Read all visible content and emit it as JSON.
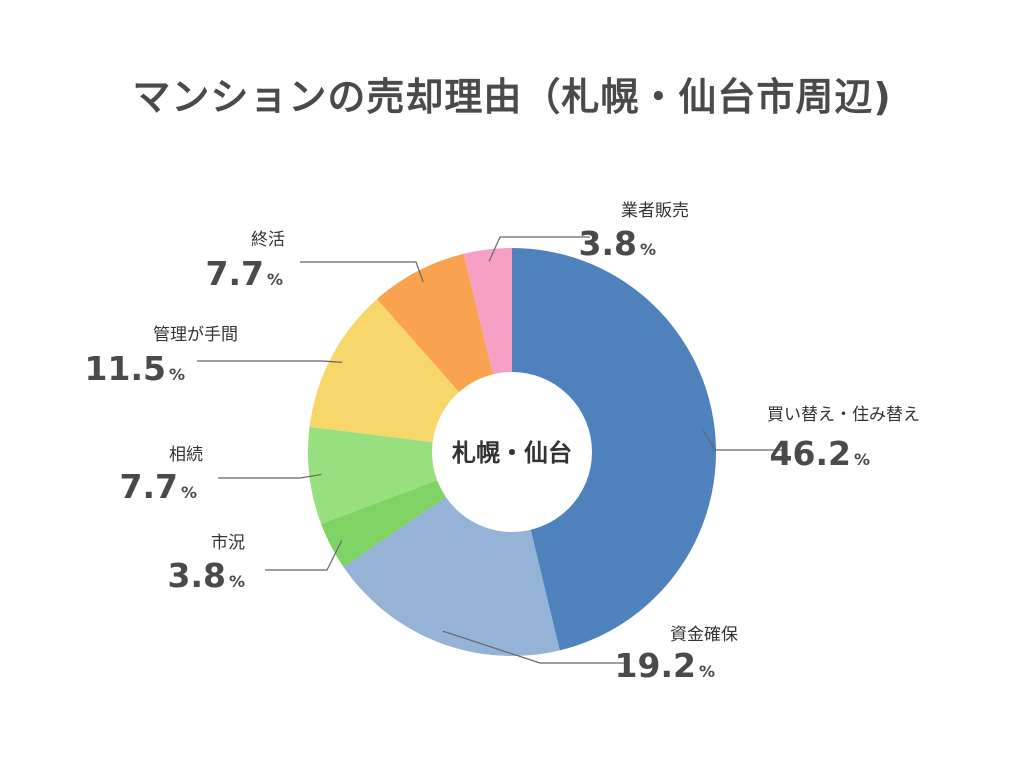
{
  "chart_data": {
    "type": "pie",
    "title": "マンションの売却理由（札幌・仙台市周辺)",
    "center_label": "札幌・仙台",
    "unit": "%",
    "slices": [
      {
        "label": "買い替え・住み替え",
        "value": 46.2,
        "display": "46.2",
        "color": "#4f81bd"
      },
      {
        "label": "資金確保",
        "value": 19.2,
        "display": "19.2",
        "color": "#95b3d7"
      },
      {
        "label": "市況",
        "value": 3.8,
        "display": "3.8",
        "color": "#7ed364"
      },
      {
        "label": "相続",
        "value": 7.7,
        "display": "7.7",
        "color": "#98e07f"
      },
      {
        "label": "管理が手間",
        "value": 11.5,
        "display": "11.5",
        "color": "#f7d76a"
      },
      {
        "label": "終活",
        "value": 7.7,
        "display": "7.7",
        "color": "#f9a24f"
      },
      {
        "label": "業者販売",
        "value": 3.8,
        "display": "3.8",
        "color": "#f5a0c4"
      }
    ]
  }
}
